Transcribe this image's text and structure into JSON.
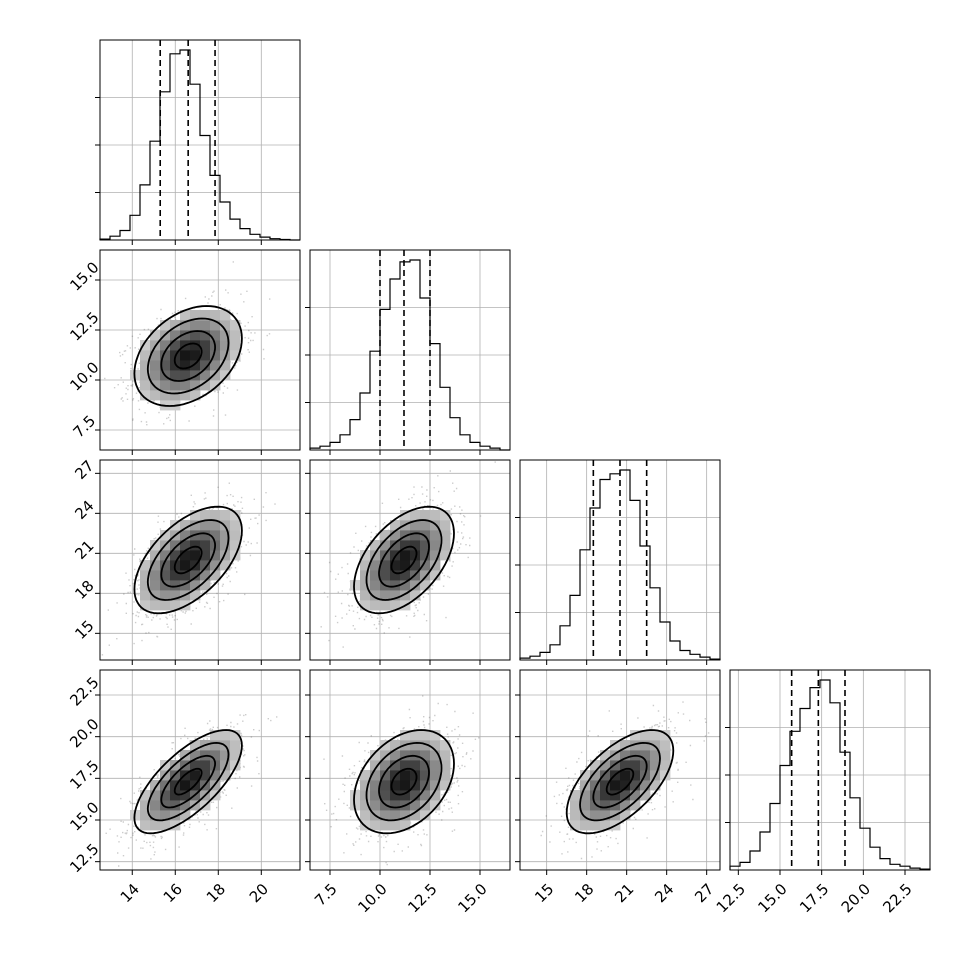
{
  "chart_data": {
    "type": "corner",
    "variables": [
      {
        "mean": 16.6,
        "sd": 1.25,
        "range": [
          12.5,
          21.8
        ],
        "ticks": [
          14,
          16,
          18,
          20
        ],
        "tick_labels": [
          "14",
          "16",
          "18",
          "20"
        ],
        "quantiles": [
          15.3,
          16.6,
          17.85
        ],
        "hist": {
          "edges": [
            12.5,
            12.965,
            13.43,
            13.895,
            14.36,
            14.825,
            15.29,
            15.755,
            16.22,
            16.685,
            17.15,
            17.615,
            18.08,
            18.545,
            19.01,
            19.475,
            19.94,
            20.405,
            20.87,
            21.335,
            21.8
          ],
          "counts": [
            0.005,
            0.02,
            0.05,
            0.13,
            0.29,
            0.52,
            0.78,
            0.98,
            1.0,
            0.82,
            0.55,
            0.34,
            0.2,
            0.11,
            0.06,
            0.03,
            0.015,
            0.007,
            0.003,
            0.0
          ]
        }
      },
      {
        "mean": 11.2,
        "sd": 1.25,
        "range": [
          6.5,
          16.5
        ],
        "ticks": [
          7.5,
          10.0,
          12.5,
          15.0
        ],
        "tick_labels": [
          "7.5",
          "10.0",
          "12.5",
          "15.0"
        ],
        "quantiles": [
          10.0,
          11.2,
          12.5
        ],
        "hist": {
          "edges": [
            6.5,
            7.0,
            7.5,
            8.0,
            8.5,
            9.0,
            9.5,
            10.0,
            10.5,
            11.0,
            11.5,
            12.0,
            12.5,
            13.0,
            13.5,
            14.0,
            14.5,
            15.0,
            15.5,
            16.0,
            16.5
          ],
          "counts": [
            0.01,
            0.02,
            0.04,
            0.08,
            0.16,
            0.3,
            0.52,
            0.74,
            0.9,
            0.99,
            1.0,
            0.8,
            0.56,
            0.33,
            0.17,
            0.08,
            0.04,
            0.02,
            0.01,
            0.0
          ]
        }
      },
      {
        "mean": 20.5,
        "sd": 2.0,
        "range": [
          13.0,
          28.0
        ],
        "ticks": [
          15,
          18,
          21,
          24,
          27
        ],
        "tick_labels": [
          "15",
          "18",
          "21",
          "24",
          "27"
        ],
        "quantiles": [
          18.5,
          20.5,
          22.5
        ],
        "hist": {
          "edges": [
            13.0,
            13.75,
            14.5,
            15.25,
            16.0,
            16.75,
            17.5,
            18.25,
            19.0,
            19.75,
            20.5,
            21.25,
            22.0,
            22.75,
            23.5,
            24.25,
            25.0,
            25.75,
            26.5,
            27.25,
            28.0
          ],
          "counts": [
            0.01,
            0.02,
            0.04,
            0.08,
            0.18,
            0.34,
            0.58,
            0.8,
            0.95,
            0.98,
            1.0,
            0.84,
            0.6,
            0.38,
            0.2,
            0.1,
            0.05,
            0.03,
            0.015,
            0.005
          ]
        }
      },
      {
        "mean": 17.3,
        "sd": 1.55,
        "range": [
          12.0,
          24.0
        ],
        "ticks": [
          12.5,
          15.0,
          17.5,
          20.0,
          22.5
        ],
        "tick_labels": [
          "12.5",
          "15.0",
          "17.5",
          "20.0",
          "22.5"
        ],
        "quantiles": [
          15.7,
          17.3,
          18.9
        ],
        "hist": {
          "edges": [
            12.0,
            12.6,
            13.2,
            13.8,
            14.4,
            15.0,
            15.6,
            16.2,
            16.8,
            17.4,
            18.0,
            18.6,
            19.2,
            19.8,
            20.4,
            21.0,
            21.6,
            22.2,
            22.8,
            23.4,
            24.0
          ],
          "counts": [
            0.02,
            0.04,
            0.1,
            0.2,
            0.35,
            0.55,
            0.73,
            0.85,
            0.96,
            1.0,
            0.88,
            0.62,
            0.38,
            0.22,
            0.12,
            0.06,
            0.03,
            0.02,
            0.01,
            0.005
          ]
        }
      }
    ],
    "pairs": [
      {
        "x": 0,
        "y": 1,
        "rho": 0.35
      },
      {
        "x": 0,
        "y": 2,
        "rho": 0.55
      },
      {
        "x": 1,
        "y": 2,
        "rho": 0.5
      },
      {
        "x": 0,
        "y": 3,
        "rho": 0.7
      },
      {
        "x": 1,
        "y": 3,
        "rho": 0.35
      },
      {
        "x": 2,
        "y": 3,
        "rho": 0.6
      }
    ],
    "contour_levels_sigma": [
      0.5,
      1.0,
      1.5,
      2.0
    ],
    "grid": true,
    "legend": "none"
  }
}
